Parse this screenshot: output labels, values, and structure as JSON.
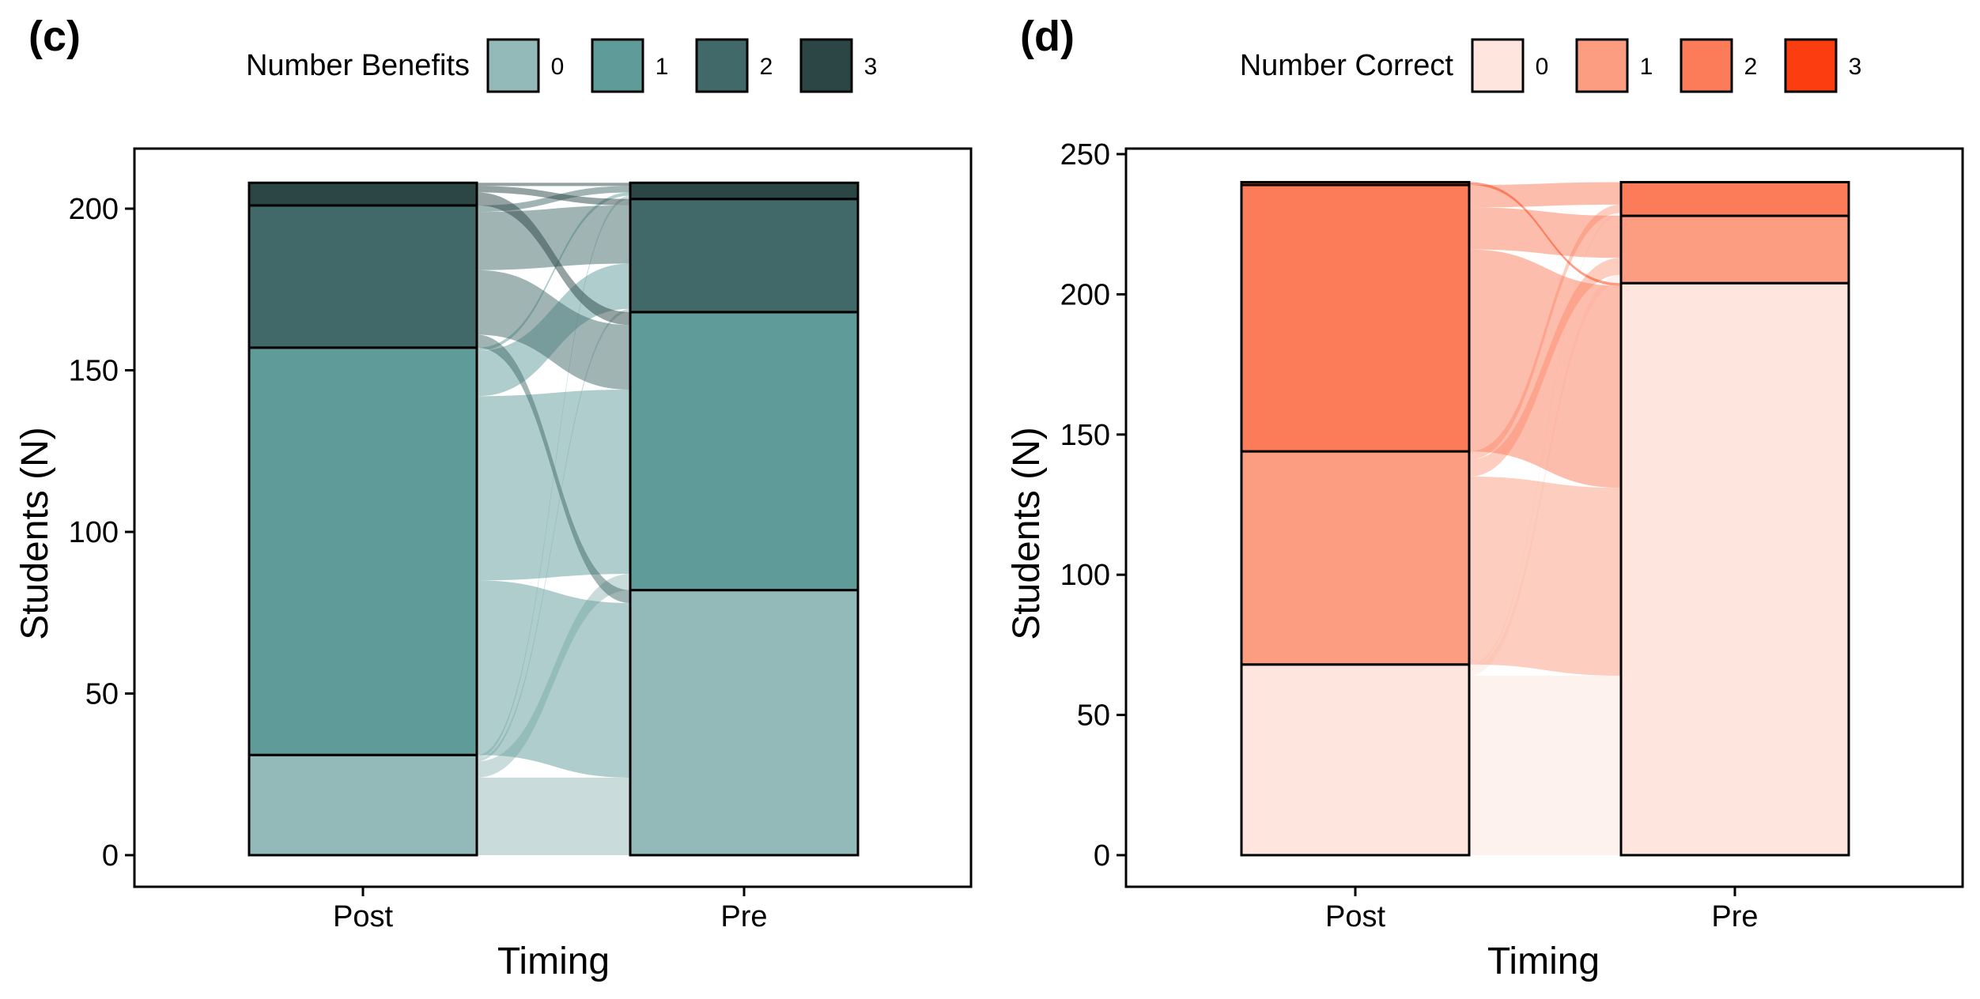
{
  "chart_data": [
    {
      "type": "alluvial",
      "panel_label": "(c)",
      "legend": {
        "title": "Number Benefits",
        "entries": [
          "0",
          "1",
          "2",
          "3"
        ],
        "position": "top"
      },
      "colors": [
        "#93BAB8",
        "#5F9C99",
        "#41696A",
        "#2C4645"
      ],
      "xlabel": "Timing",
      "ylabel": "Students (N)",
      "categories": [
        "Post",
        "Pre"
      ],
      "ylim": [
        0,
        210
      ],
      "yticks": [
        0,
        50,
        100,
        150,
        200
      ],
      "grid": false,
      "stacks": {
        "Post": [
          31,
          126,
          44,
          7
        ],
        "Pre": [
          82,
          86,
          35,
          5
        ]
      },
      "flows": [
        {
          "post": 0,
          "pre": 0,
          "count": 24
        },
        {
          "post": 0,
          "pre": 1,
          "count": 5
        },
        {
          "post": 0,
          "pre": 2,
          "count": 1
        },
        {
          "post": 0,
          "pre": 3,
          "count": 1
        },
        {
          "post": 1,
          "pre": 0,
          "count": 54
        },
        {
          "post": 1,
          "pre": 1,
          "count": 57
        },
        {
          "post": 1,
          "pre": 2,
          "count": 14
        },
        {
          "post": 1,
          "pre": 3,
          "count": 1
        },
        {
          "post": 2,
          "pre": 0,
          "count": 4
        },
        {
          "post": 2,
          "pre": 1,
          "count": 20
        },
        {
          "post": 2,
          "pre": 2,
          "count": 18
        },
        {
          "post": 2,
          "pre": 3,
          "count": 2
        },
        {
          "post": 3,
          "pre": 0,
          "count": 0
        },
        {
          "post": 3,
          "pre": 1,
          "count": 4
        },
        {
          "post": 3,
          "pre": 2,
          "count": 2
        },
        {
          "post": 3,
          "pre": 3,
          "count": 1
        }
      ]
    },
    {
      "type": "alluvial",
      "panel_label": "(d)",
      "legend": {
        "title": "Number Correct",
        "entries": [
          "0",
          "1",
          "2",
          "3"
        ],
        "position": "top"
      },
      "colors": [
        "#FEE5DD",
        "#FC9C81",
        "#FC7C5A",
        "#FC3D10"
      ],
      "xlabel": "Timing",
      "ylabel": "Students (N)",
      "categories": [
        "Post",
        "Pre"
      ],
      "ylim": [
        0,
        250
      ],
      "yticks": [
        0,
        50,
        100,
        150,
        200,
        250
      ],
      "grid": false,
      "stacks": {
        "Post": [
          68,
          76,
          95,
          1
        ],
        "Pre": [
          204,
          24,
          12,
          0
        ]
      },
      "flows": [
        {
          "post": 0,
          "pre": 0,
          "count": 64
        },
        {
          "post": 0,
          "pre": 1,
          "count": 3
        },
        {
          "post": 0,
          "pre": 2,
          "count": 1
        },
        {
          "post": 1,
          "pre": 0,
          "count": 67
        },
        {
          "post": 1,
          "pre": 1,
          "count": 6
        },
        {
          "post": 1,
          "pre": 2,
          "count": 3
        },
        {
          "post": 2,
          "pre": 0,
          "count": 72
        },
        {
          "post": 2,
          "pre": 1,
          "count": 15
        },
        {
          "post": 2,
          "pre": 2,
          "count": 8
        },
        {
          "post": 3,
          "pre": 0,
          "count": 1
        }
      ]
    }
  ]
}
